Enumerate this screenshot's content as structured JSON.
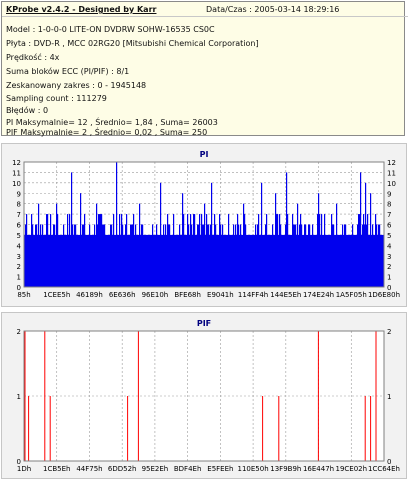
{
  "header": {
    "title": "KProbe v2.4.2 - Designed by Karr",
    "date_label": "Data/Czas : 2005-03-14 18:29:16"
  },
  "info_lines": [
    "Model : 1-0-0-0 LITE-ON DVDRW SOHW-16535 CS0C",
    "Płyta : DVD-R , MCC 02RG20  [Mitsubishi Chemical Corporation]",
    "Prędkość : 4x",
    "Suma bloków ECC (PI/PIF) : 8/1",
    "Zeskanowany zakres : 0 - 1945148",
    "Sampling count : 111279",
    "Błędów : 0",
    "PI Maksymalnie= 12 , Średnio= 1,84 , Suma= 26003",
    "PIF Maksymalnie= 2 , Średnio= 0,02 , Suma= 250"
  ],
  "chart_data": [
    {
      "type": "bar",
      "title": "PI",
      "ylim": [
        0,
        12
      ],
      "y_ticks": [
        0,
        1,
        2,
        3,
        4,
        5,
        6,
        7,
        8,
        9,
        10,
        11,
        12
      ],
      "x_tick_labels": [
        "85h",
        "1CEE5h",
        "46189h",
        "6E636h",
        "96E10h",
        "BFE68h",
        "E9041h",
        "114FF4h",
        "144E5Eh",
        "174E24h",
        "1A5F05h",
        "1D6E80h"
      ],
      "base_level": 5,
      "color": "#0000ee",
      "peaks": [
        {
          "pos": 0.005,
          "value": 7
        },
        {
          "pos": 0.04,
          "value": 8
        },
        {
          "pos": 0.09,
          "value": 8
        },
        {
          "pos": 0.13,
          "value": 11
        },
        {
          "pos": 0.155,
          "value": 9
        },
        {
          "pos": 0.2,
          "value": 8
        },
        {
          "pos": 0.255,
          "value": 12
        },
        {
          "pos": 0.32,
          "value": 8
        },
        {
          "pos": 0.38,
          "value": 10
        },
        {
          "pos": 0.44,
          "value": 9
        },
        {
          "pos": 0.5,
          "value": 8
        },
        {
          "pos": 0.52,
          "value": 10
        },
        {
          "pos": 0.61,
          "value": 8
        },
        {
          "pos": 0.66,
          "value": 10
        },
        {
          "pos": 0.7,
          "value": 9
        },
        {
          "pos": 0.73,
          "value": 11
        },
        {
          "pos": 0.76,
          "value": 8
        },
        {
          "pos": 0.82,
          "value": 9
        },
        {
          "pos": 0.87,
          "value": 8
        },
        {
          "pos": 0.935,
          "value": 11
        },
        {
          "pos": 0.95,
          "value": 10
        },
        {
          "pos": 0.965,
          "value": 9
        }
      ]
    },
    {
      "type": "bar",
      "title": "PIF",
      "ylim": [
        0,
        2
      ],
      "y_ticks": [
        0,
        1,
        2
      ],
      "x_tick_labels": [
        "1Dh",
        "1CB5Eh",
        "44F75h",
        "6DD52h",
        "95E2Eh",
        "BDF4Eh",
        "E5FEEh",
        "110E50h",
        "13F9B9h",
        "16E447h",
        "19CE02h",
        "1CC64Eh"
      ],
      "color": "#ff0000",
      "values": [
        {
          "pos": 0.0,
          "value": 2
        },
        {
          "pos": 0.01,
          "value": 1
        },
        {
          "pos": 0.055,
          "value": 2
        },
        {
          "pos": 0.07,
          "value": 1
        },
        {
          "pos": 0.285,
          "value": 1
        },
        {
          "pos": 0.315,
          "value": 2
        },
        {
          "pos": 0.66,
          "value": 1
        },
        {
          "pos": 0.705,
          "value": 1
        },
        {
          "pos": 0.815,
          "value": 2
        },
        {
          "pos": 0.945,
          "value": 1
        },
        {
          "pos": 0.96,
          "value": 1
        },
        {
          "pos": 0.975,
          "value": 2
        }
      ]
    }
  ]
}
